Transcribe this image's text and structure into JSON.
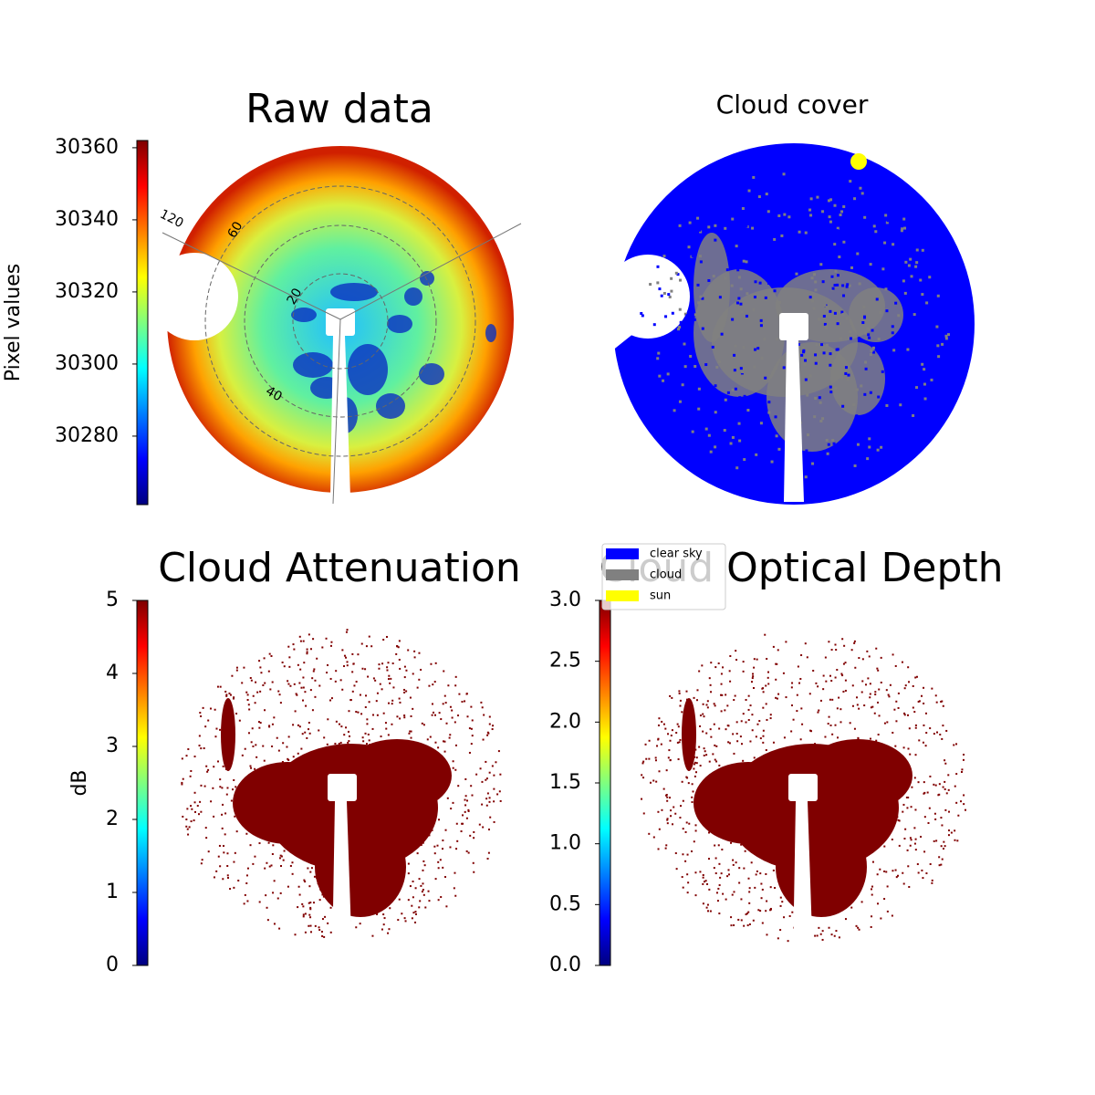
{
  "chart_data": [
    {
      "type": "image",
      "title": "Raw data",
      "colorbar": {
        "label": "Pixel values",
        "colormap": "jet",
        "ylim": [
          30261,
          30362
        ],
        "yticks": [
          30280,
          30300,
          30320,
          30340,
          30360
        ]
      },
      "annotations": [
        "120",
        "60",
        "20",
        "40"
      ]
    },
    {
      "type": "image",
      "title": "Cloud cover",
      "series": [
        {
          "name": "clear sky",
          "color": "#0000ff"
        },
        {
          "name": "cloud",
          "color": "#808080"
        },
        {
          "name": "sun",
          "color": "#ffff00"
        }
      ]
    },
    {
      "type": "image",
      "title": "Cloud Attenuation",
      "color": "#800000",
      "colorbar": {
        "label": "dB",
        "colormap": "jet",
        "ylim": [
          0,
          5
        ],
        "yticks": [
          0,
          1,
          2,
          3,
          4,
          5
        ]
      }
    },
    {
      "type": "image",
      "title": "Cloud Optical Depth",
      "color": "#800000",
      "colorbar": {
        "colormap": "jet",
        "ylim": [
          0,
          3
        ],
        "yticks": [
          {
            "value": 0,
            "label": "0.0"
          },
          0.5,
          {
            "value": 1,
            "label": "1.0"
          },
          1.5,
          {
            "value": 2,
            "label": "2.0"
          },
          2.5,
          {
            "value": 3,
            "label": "3.0"
          }
        ]
      }
    }
  ]
}
